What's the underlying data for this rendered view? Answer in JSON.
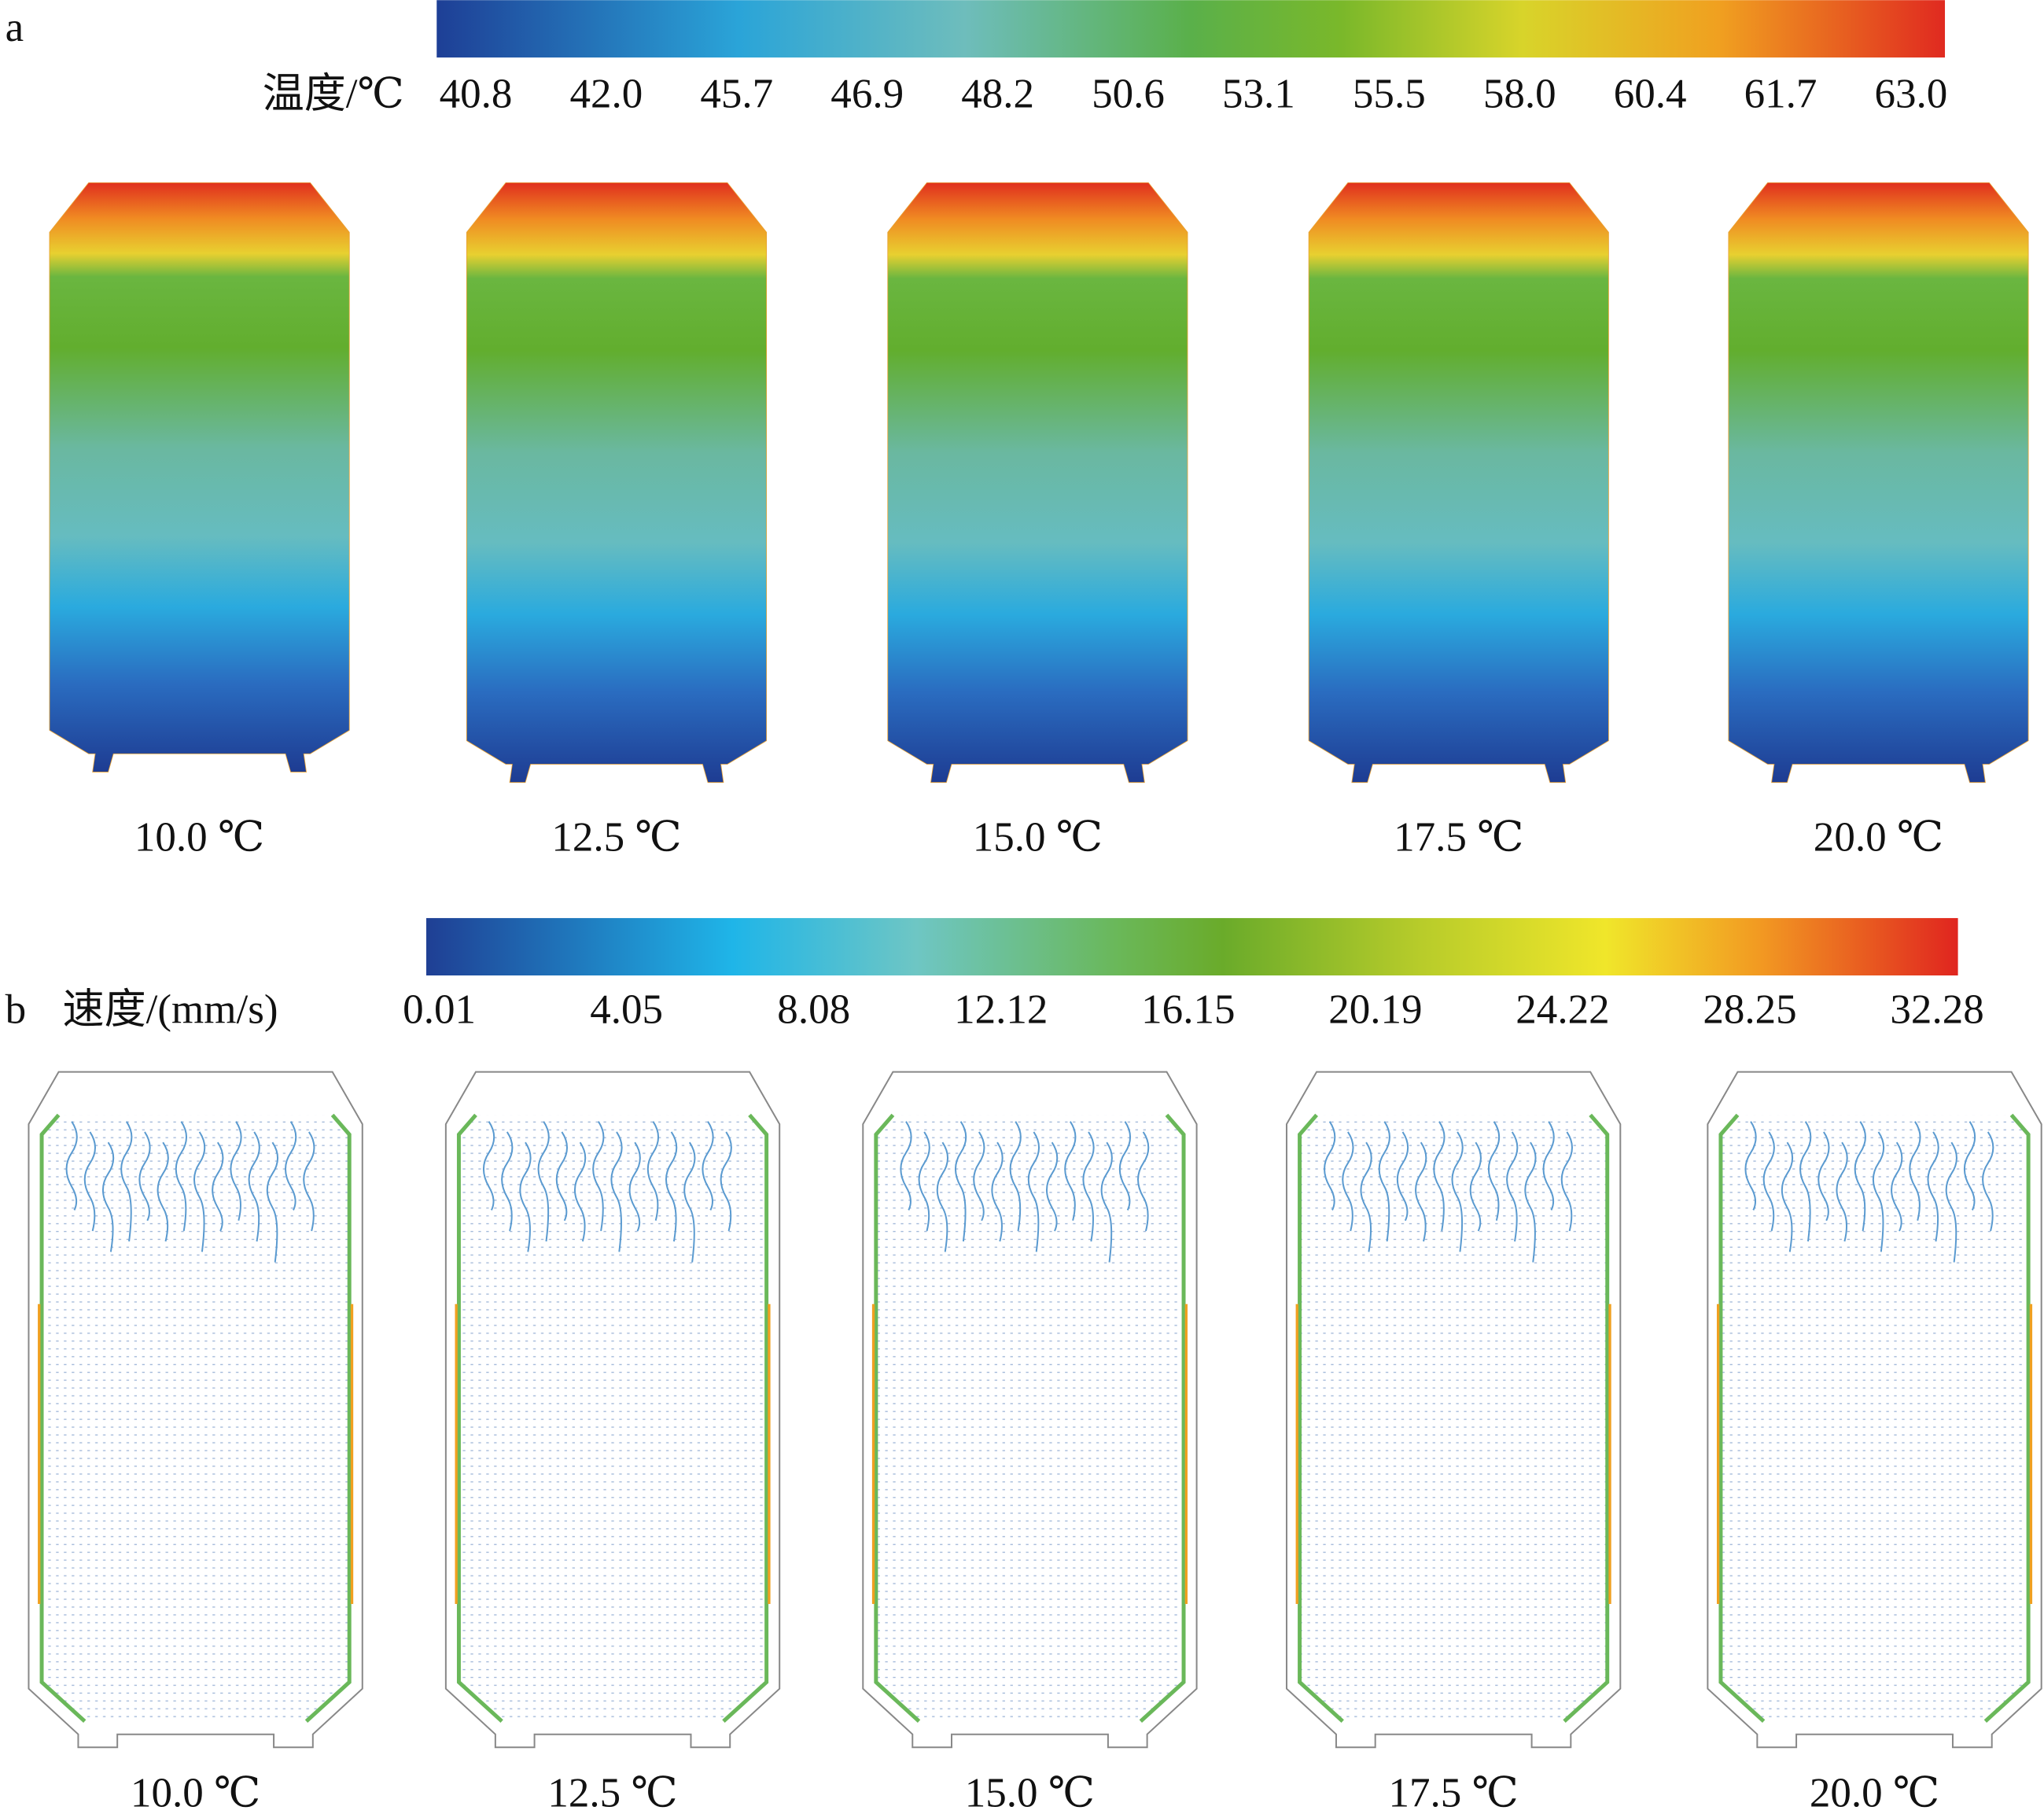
{
  "panel_a": {
    "label": "a",
    "colorbar_label": "温度/℃",
    "colorbar_ticks": [
      "40.8",
      "42.0",
      "45.7",
      "46.9",
      "48.2",
      "50.6",
      "53.1",
      "55.5",
      "58.0",
      "60.4",
      "61.7",
      "63.0"
    ],
    "cases": [
      "10.0 ℃",
      "12.5 ℃",
      "15.0 ℃",
      "17.5 ℃",
      "20.0 ℃"
    ]
  },
  "panel_b": {
    "label": "b",
    "colorbar_label": "速度/(mm/s)",
    "colorbar_ticks": [
      "0.01",
      "4.05",
      "8.08",
      "12.12",
      "16.15",
      "20.19",
      "24.22",
      "28.25",
      "32.28"
    ],
    "cases": [
      "10.0 ℃",
      "12.5 ℃",
      "15.0 ℃",
      "17.5 ℃",
      "20.0 ℃"
    ]
  }
}
